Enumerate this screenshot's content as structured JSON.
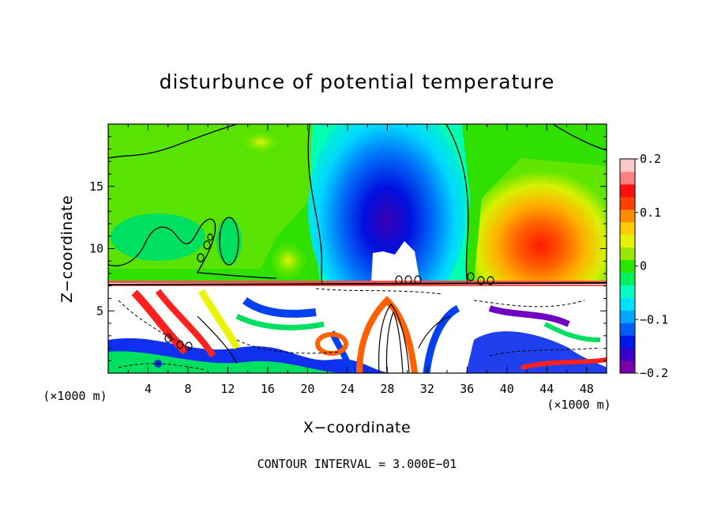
{
  "chart_data": {
    "type": "heatmap",
    "title": "disturbunce of potential temperature",
    "xlabel": "X−coordinate",
    "ylabel": "Z−coordinate",
    "x_units": "(×1000 m)",
    "x_units_right": "(×1000 m)",
    "xlim": [
      0,
      50
    ],
    "ylim": [
      0,
      20
    ],
    "x_ticks": [
      4,
      8,
      12,
      16,
      20,
      24,
      28,
      32,
      36,
      40,
      44,
      48
    ],
    "y_ticks": [
      5,
      10,
      15
    ],
    "colorbar": {
      "range": [
        -0.2,
        0.2
      ],
      "tick_values": [
        0.2,
        0.1,
        0,
        -0.1,
        -0.2
      ],
      "tick_labels": [
        "0.2",
        "0.1",
        "0",
        "−0.1",
        "−0.2"
      ],
      "colors": [
        "#7b00a8",
        "#3700c8",
        "#0018e6",
        "#0060f5",
        "#00a6ff",
        "#00e0ff",
        "#00ffc0",
        "#00f060",
        "#28e600",
        "#9ae600",
        "#e6f200",
        "#ffcc00",
        "#ff8c00",
        "#ff4000",
        "#ff1010",
        "#ff8080",
        "#ffc8c8"
      ]
    },
    "footer": "CONTOUR INTERVAL = 3.000E−01",
    "contour_interval": 0.3,
    "grid": false
  }
}
